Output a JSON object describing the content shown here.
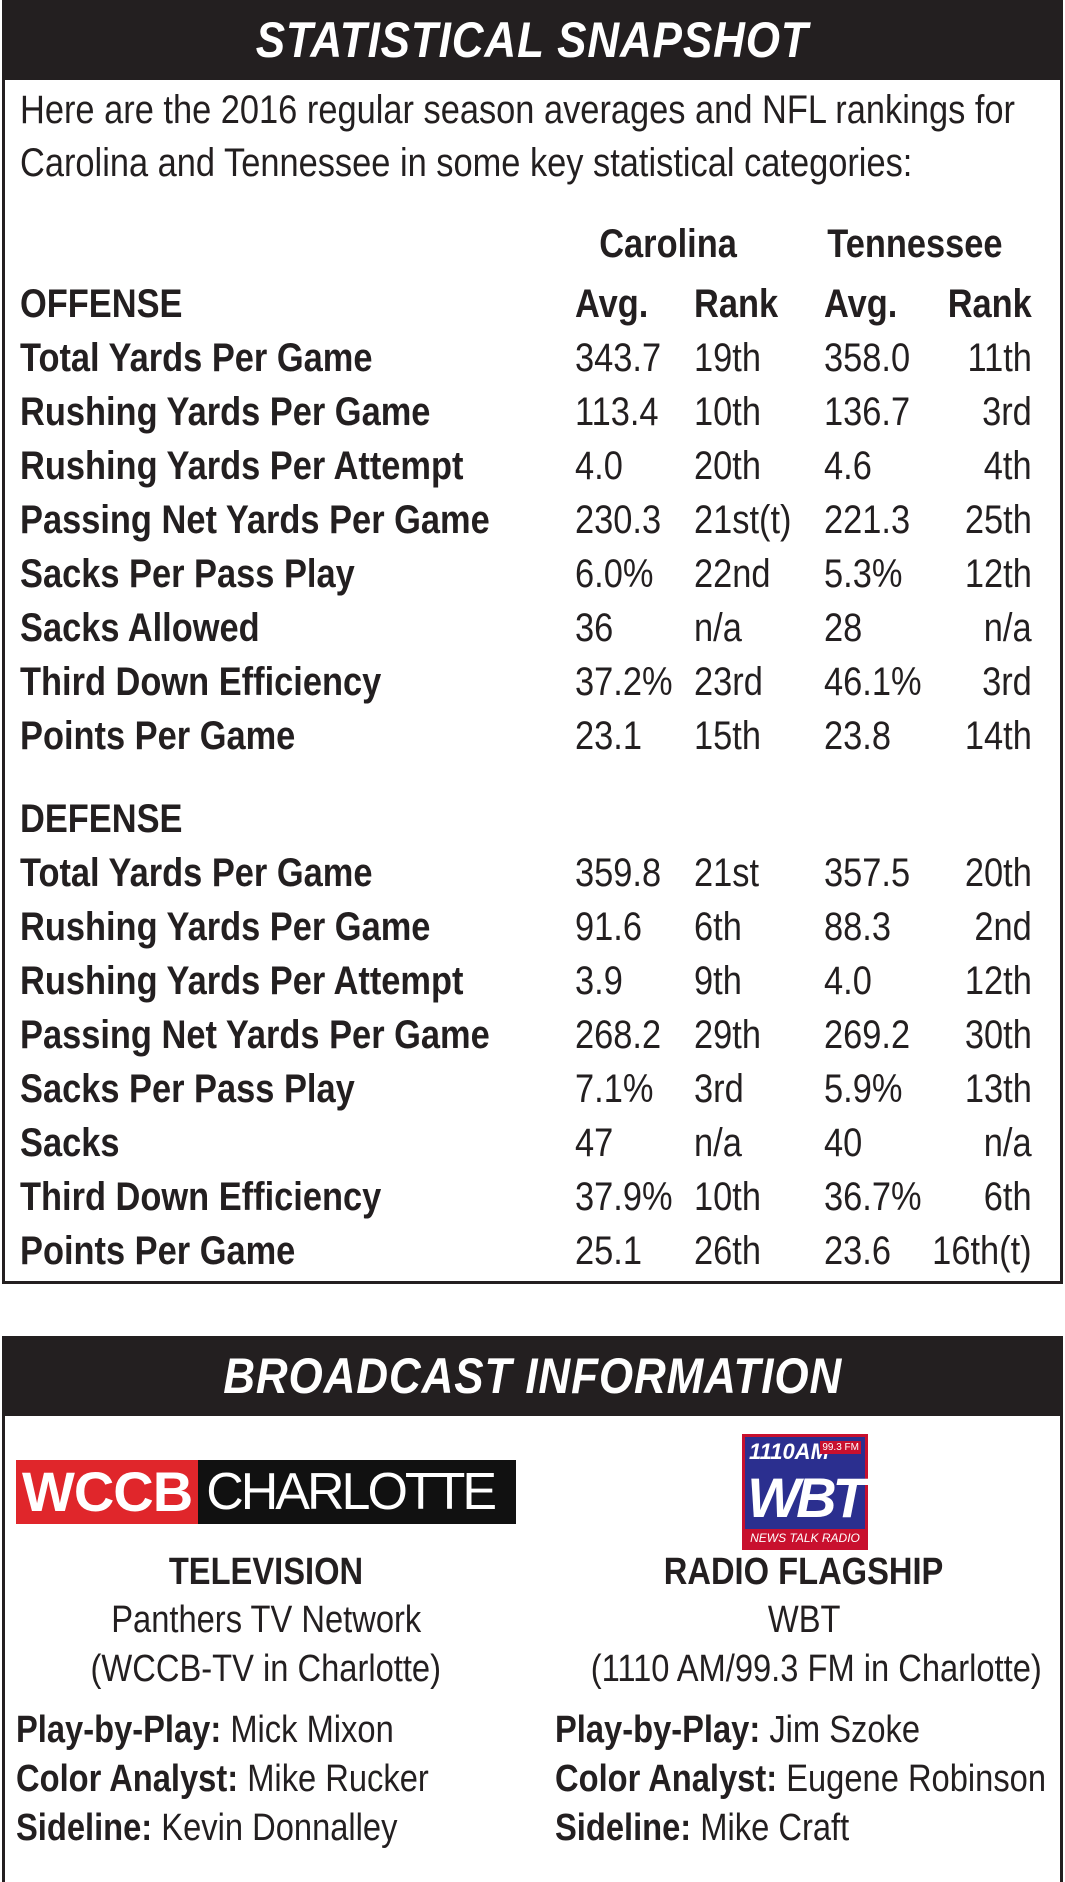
{
  "snapshot": {
    "title": "STATISTICAL SNAPSHOT",
    "intro_line1": "Here are the 2016 regular season averages and NFL rankings for",
    "intro_line2": "Carolina and Tennessee in some key statistical categories:",
    "team1": "Carolina",
    "team2": "Tennessee",
    "col_avg": "Avg.",
    "col_rank": "Rank",
    "offense_heading": "OFFENSE",
    "defense_heading": "DEFENSE",
    "offense_rows": [
      {
        "label": "Total Yards Per Game",
        "car_avg": "343.7",
        "car_rank": "19th",
        "ten_avg": "358.0",
        "ten_rank": "11th"
      },
      {
        "label": "Rushing Yards Per Game",
        "car_avg": "113.4",
        "car_rank": "10th",
        "ten_avg": "136.7",
        "ten_rank": "3rd"
      },
      {
        "label": "Rushing Yards Per Attempt",
        "car_avg": "4.0",
        "car_rank": "20th",
        "ten_avg": "4.6",
        "ten_rank": "4th"
      },
      {
        "label": "Passing Net Yards Per Game",
        "car_avg": "230.3",
        "car_rank": "21st(t)",
        "ten_avg": "221.3",
        "ten_rank": "25th"
      },
      {
        "label": "Sacks Per Pass Play",
        "car_avg": "6.0%",
        "car_rank": "22nd",
        "ten_avg": "5.3%",
        "ten_rank": "12th"
      },
      {
        "label": "Sacks Allowed",
        "car_avg": "36",
        "car_rank": "n/a",
        "ten_avg": "28",
        "ten_rank": "n/a"
      },
      {
        "label": "Third Down Efficiency",
        "car_avg": "37.2%",
        "car_rank": "23rd",
        "ten_avg": "46.1%",
        "ten_rank": "3rd"
      },
      {
        "label": "Points Per Game",
        "car_avg": "23.1",
        "car_rank": "15th",
        "ten_avg": "23.8",
        "ten_rank": "14th"
      }
    ],
    "defense_rows": [
      {
        "label": "Total Yards Per Game",
        "car_avg": "359.8",
        "car_rank": "21st",
        "ten_avg": "357.5",
        "ten_rank": "20th"
      },
      {
        "label": "Rushing Yards Per Game",
        "car_avg": "91.6",
        "car_rank": "6th",
        "ten_avg": "88.3",
        "ten_rank": "2nd"
      },
      {
        "label": "Rushing Yards Per Attempt",
        "car_avg": "3.9",
        "car_rank": "9th",
        "ten_avg": "4.0",
        "ten_rank": "12th"
      },
      {
        "label": "Passing Net Yards Per Game",
        "car_avg": "268.2",
        "car_rank": "29th",
        "ten_avg": "269.2",
        "ten_rank": "30th"
      },
      {
        "label": "Sacks Per Pass Play",
        "car_avg": "7.1%",
        "car_rank": "3rd",
        "ten_avg": "5.9%",
        "ten_rank": "13th"
      },
      {
        "label": "Sacks",
        "car_avg": "47",
        "car_rank": "n/a",
        "ten_avg": "40",
        "ten_rank": "n/a"
      },
      {
        "label": "Third Down Efficiency",
        "car_avg": "37.9%",
        "car_rank": "10th",
        "ten_avg": "36.7%",
        "ten_rank": "6th"
      },
      {
        "label": "Points Per Game",
        "car_avg": "25.1",
        "car_rank": "26th",
        "ten_avg": "23.6",
        "ten_rank": "16th(t)"
      }
    ]
  },
  "broadcast": {
    "title": "BROADCAST INFORMATION",
    "tv": {
      "logo_part1": "WCCB",
      "logo_part2": "CHARLOTTE",
      "heading": "TELEVISION",
      "line1": "Panthers TV Network",
      "line2": "(WCCB-TV in Charlotte)",
      "credits": [
        {
          "role": "Play-by-Play:",
          "name": "Mick Mixon"
        },
        {
          "role": "Color Analyst:",
          "name": "Mike Rucker"
        },
        {
          "role": "Sideline:",
          "name": "Kevin Donnalley"
        }
      ]
    },
    "radio": {
      "logo_top": "1110AM",
      "logo_fm": "99.3 FM",
      "logo_mid": "WBT",
      "logo_bottom": "NEWS TALK RADIO",
      "heading": "RADIO FLAGSHIP",
      "line1": "WBT",
      "line2": "(1110 AM/99.3 FM in Charlotte)",
      "credits": [
        {
          "role": "Play-by-Play:",
          "name": "Jim Szoke"
        },
        {
          "role": "Color Analyst:",
          "name": "Eugene Robinson"
        },
        {
          "role": "Sideline:",
          "name": "Mike Craft"
        }
      ]
    }
  }
}
